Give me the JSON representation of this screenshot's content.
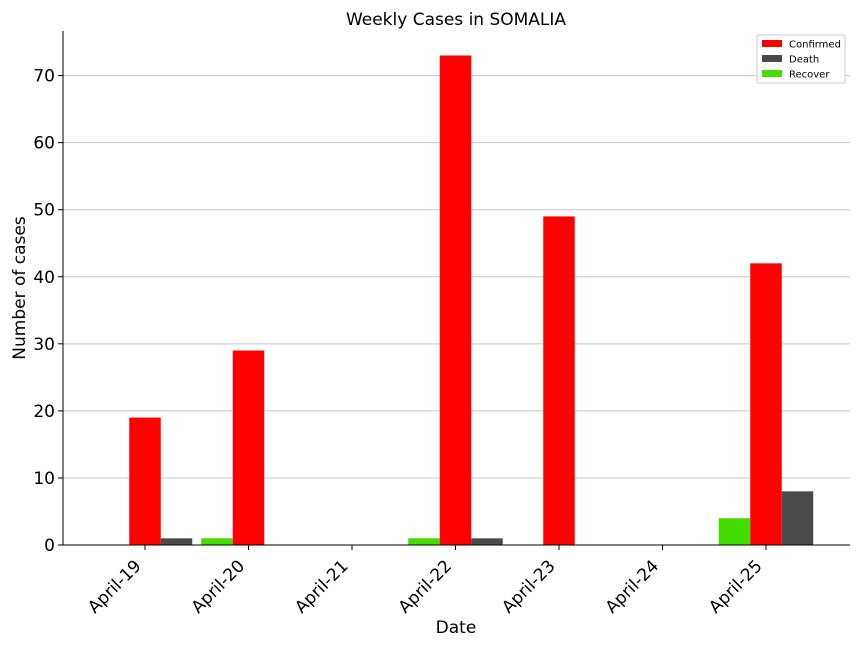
{
  "chart_data": {
    "type": "bar",
    "title": "Weekly Cases in SOMALIA",
    "xlabel": "Date",
    "ylabel": "Number of cases",
    "categories": [
      "April-19",
      "April-20",
      "April-21",
      "April-22",
      "April-23",
      "April-24",
      "April-25"
    ],
    "series": [
      {
        "name": "Recover",
        "color": "#44dd00",
        "values": [
          0,
          1,
          0,
          1,
          0,
          0,
          4
        ]
      },
      {
        "name": "Confirmed",
        "color": "#ff0000",
        "values": [
          19,
          29,
          0,
          73,
          49,
          0,
          42
        ]
      },
      {
        "name": "Death",
        "color": "#4a4a4a",
        "values": [
          1,
          0,
          0,
          1,
          0,
          0,
          8
        ]
      }
    ],
    "legend_order": [
      "Confirmed",
      "Death",
      "Recover"
    ],
    "ylim": [
      0,
      76.65
    ],
    "yticks": [
      0,
      10,
      20,
      30,
      40,
      50,
      60,
      70
    ],
    "grid": "horizontal",
    "legend_position": "top-right"
  }
}
